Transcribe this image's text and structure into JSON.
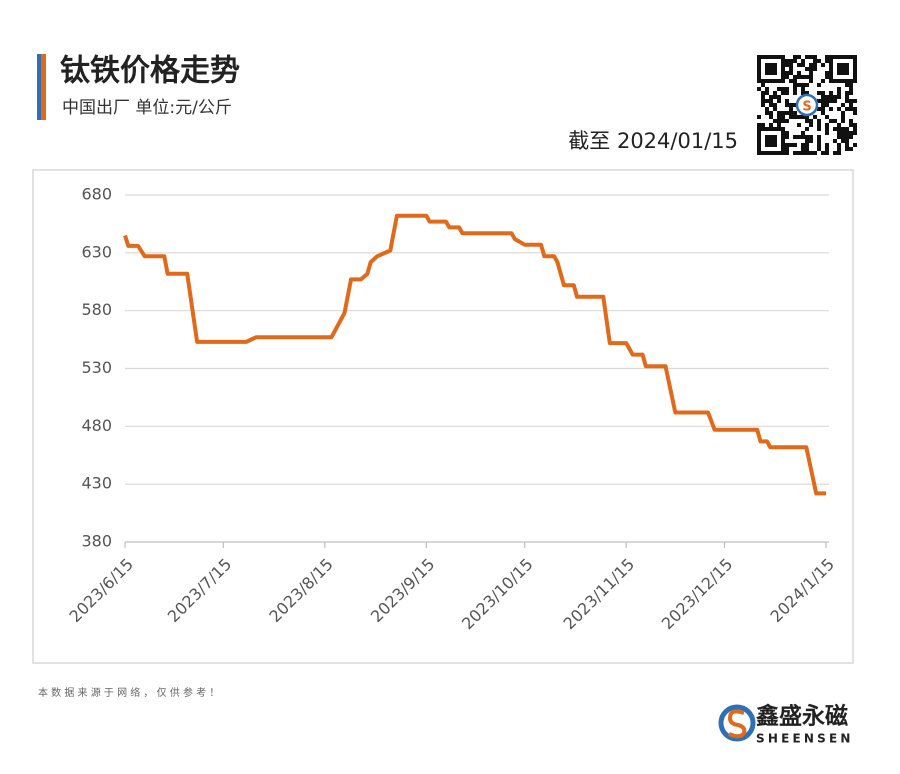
{
  "chart_data": {
    "type": "line",
    "title": "钛铁价格走势",
    "subtitle": "中国出厂  单位:元/公斤",
    "note": "截至 2024/01/15",
    "x": [
      "2023/6/15",
      "2023/6/16",
      "2023/6/19",
      "2023/6/21",
      "2023/6/27",
      "2023/6/28",
      "2023/7/4",
      "2023/7/7",
      "2023/7/22",
      "2023/7/25",
      "2023/8/17",
      "2023/8/21",
      "2023/8/23",
      "2023/8/26",
      "2023/8/28",
      "2023/8/29",
      "2023/8/31",
      "2023/9/4",
      "2023/9/6",
      "2023/9/15",
      "2023/9/16",
      "2023/9/21",
      "2023/9/22",
      "2023/9/25",
      "2023/9/26",
      "2023/10/11",
      "2023/10/12",
      "2023/10/15",
      "2023/10/20",
      "2023/10/21",
      "2023/10/24",
      "2023/10/25",
      "2023/10/27",
      "2023/10/30",
      "2023/10/31",
      "2023/11/8",
      "2023/11/10",
      "2023/11/15",
      "2023/11/17",
      "2023/11/20",
      "2023/11/21",
      "2023/11/27",
      "2023/11/30",
      "2023/12/10",
      "2023/12/12",
      "2023/12/25",
      "2023/12/26",
      "2023/12/28",
      "2023/12/29",
      "2024/1/9",
      "2024/1/12",
      "2024/1/15"
    ],
    "values": [
      645,
      636,
      636,
      627,
      627,
      612,
      612,
      553,
      553,
      557,
      557,
      578,
      607,
      607,
      612,
      622,
      627,
      632,
      662,
      662,
      657,
      657,
      652,
      652,
      647,
      647,
      642,
      637,
      637,
      627,
      627,
      622,
      602,
      602,
      592,
      592,
      552,
      552,
      542,
      542,
      532,
      532,
      492,
      492,
      477,
      477,
      467,
      467,
      462,
      462,
      422,
      422
    ],
    "color": "#e0691a",
    "xlim": [
      "2023/6/15",
      "2024/1/15"
    ],
    "xticks": [
      "2023/6/15",
      "2023/7/15",
      "2023/8/15",
      "2023/9/15",
      "2023/10/15",
      "2023/11/15",
      "2023/12/15",
      "2024/1/15"
    ],
    "ylim": [
      380,
      680
    ],
    "yticks": [
      380,
      430,
      480,
      530,
      580,
      630,
      680
    ],
    "grid": true
  },
  "footer": "本 数 据 来 源 于 网 络 ， 仅 供 参 考 ！",
  "brand": {
    "name": "鑫盛永磁",
    "latin": "SHEENSEN"
  }
}
